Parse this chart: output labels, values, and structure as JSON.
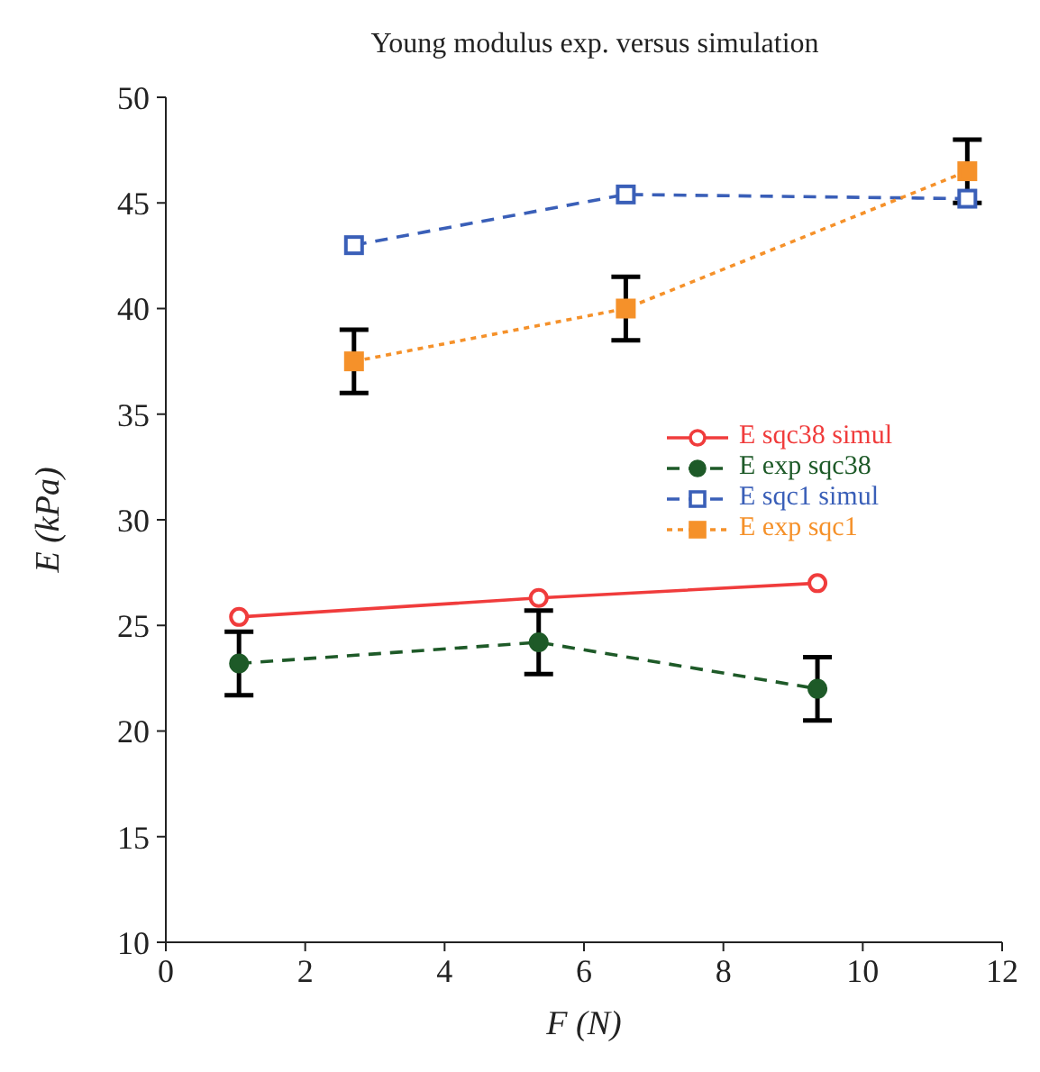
{
  "chart_data": {
    "type": "line",
    "title": "Young modulus exp. versus simulation",
    "xlabel": "F (N)",
    "ylabel": "E (kPa)",
    "xlim": [
      0,
      12
    ],
    "xticks": [
      0,
      2,
      4,
      6,
      8,
      10,
      12
    ],
    "ylim": [
      10,
      50
    ],
    "yticks": [
      10,
      15,
      20,
      25,
      30,
      35,
      40,
      45,
      50
    ],
    "grid": false,
    "legend": "right",
    "series": [
      {
        "name": "E sqc38 simul",
        "color": "#f03c3c",
        "x": [
          1.05,
          5.35,
          9.35
        ],
        "values": [
          25.4,
          26.3,
          27.0
        ],
        "marker": "circle",
        "line_style": "solid"
      },
      {
        "name": "E exp sqc38",
        "color": "#1e5a28",
        "x": [
          1.05,
          5.35,
          9.35
        ],
        "values": [
          23.2,
          24.2,
          22.0
        ],
        "errors": [
          1.5,
          1.5,
          1.5
        ],
        "marker": "circle",
        "line_style": "dashed"
      },
      {
        "name": "E sqc1 simul",
        "color": "#3a5fb8",
        "x": [
          2.7,
          6.6,
          11.5
        ],
        "values": [
          43.0,
          45.4,
          45.2
        ],
        "marker": "square",
        "line_style": "dashed"
      },
      {
        "name": "E exp sqc1",
        "color": "#f5912a",
        "x": [
          2.7,
          6.6,
          11.5
        ],
        "values": [
          37.5,
          40.0,
          46.5
        ],
        "errors": [
          1.5,
          1.5,
          1.5
        ],
        "marker": "square",
        "line_style": "dotted"
      }
    ]
  }
}
